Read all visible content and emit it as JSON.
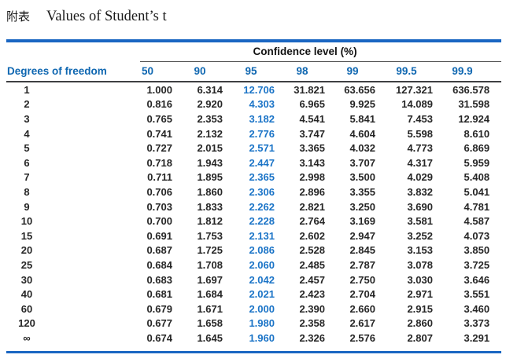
{
  "page": {
    "title_prefix": "附表",
    "title": "Values of Student’s t"
  },
  "colors": {
    "rule_blue": "#1a66c2",
    "header_text_blue": "#0f67b1",
    "highlight_column_blue": "#1b74c7",
    "body_text": "#262626",
    "thin_rule_gray": "#4d4d4d"
  },
  "table": {
    "spanner": "Confidence level (%)",
    "row_header": "Degrees of freedom",
    "columns": [
      "50",
      "90",
      "95",
      "98",
      "99",
      "99.5",
      "99.9"
    ],
    "highlight_column": "95",
    "rows": [
      {
        "df": "1",
        "values": [
          "1.000",
          "6.314",
          "12.706",
          "31.821",
          "63.656",
          "127.321",
          "636.578"
        ]
      },
      {
        "df": "2",
        "values": [
          "0.816",
          "2.920",
          "4.303",
          "6.965",
          "9.925",
          "14.089",
          "31.598"
        ]
      },
      {
        "df": "3",
        "values": [
          "0.765",
          "2.353",
          "3.182",
          "4.541",
          "5.841",
          "7.453",
          "12.924"
        ]
      },
      {
        "df": "4",
        "values": [
          "0.741",
          "2.132",
          "2.776",
          "3.747",
          "4.604",
          "5.598",
          "8.610"
        ]
      },
      {
        "df": "5",
        "values": [
          "0.727",
          "2.015",
          "2.571",
          "3.365",
          "4.032",
          "4.773",
          "6.869"
        ]
      },
      {
        "df": "6",
        "values": [
          "0.718",
          "1.943",
          "2.447",
          "3.143",
          "3.707",
          "4.317",
          "5.959"
        ]
      },
      {
        "df": "7",
        "values": [
          "0.711",
          "1.895",
          "2.365",
          "2.998",
          "3.500",
          "4.029",
          "5.408"
        ]
      },
      {
        "df": "8",
        "values": [
          "0.706",
          "1.860",
          "2.306",
          "2.896",
          "3.355",
          "3.832",
          "5.041"
        ]
      },
      {
        "df": "9",
        "values": [
          "0.703",
          "1.833",
          "2.262",
          "2.821",
          "3.250",
          "3.690",
          "4.781"
        ]
      },
      {
        "df": "10",
        "values": [
          "0.700",
          "1.812",
          "2.228",
          "2.764",
          "3.169",
          "3.581",
          "4.587"
        ]
      },
      {
        "df": "15",
        "values": [
          "0.691",
          "1.753",
          "2.131",
          "2.602",
          "2.947",
          "3.252",
          "4.073"
        ]
      },
      {
        "df": "20",
        "values": [
          "0.687",
          "1.725",
          "2.086",
          "2.528",
          "2.845",
          "3.153",
          "3.850"
        ]
      },
      {
        "df": "25",
        "values": [
          "0.684",
          "1.708",
          "2.060",
          "2.485",
          "2.787",
          "3.078",
          "3.725"
        ]
      },
      {
        "df": "30",
        "values": [
          "0.683",
          "1.697",
          "2.042",
          "2.457",
          "2.750",
          "3.030",
          "3.646"
        ]
      },
      {
        "df": "40",
        "values": [
          "0.681",
          "1.684",
          "2.021",
          "2.423",
          "2.704",
          "2.971",
          "3.551"
        ]
      },
      {
        "df": "60",
        "values": [
          "0.679",
          "1.671",
          "2.000",
          "2.390",
          "2.660",
          "2.915",
          "3.460"
        ]
      },
      {
        "df": "120",
        "values": [
          "0.677",
          "1.658",
          "1.980",
          "2.358",
          "2.617",
          "2.860",
          "3.373"
        ]
      },
      {
        "df": "∞",
        "values": [
          "0.674",
          "1.645",
          "1.960",
          "2.326",
          "2.576",
          "2.807",
          "3.291"
        ]
      }
    ]
  },
  "chart_data": {
    "type": "table",
    "title": "Values of Student’s t",
    "column_group_label": "Confidence level (%)",
    "row_label": "Degrees of freedom",
    "columns": [
      "50",
      "90",
      "95",
      "98",
      "99",
      "99.5",
      "99.9"
    ],
    "rows": [
      "1",
      "2",
      "3",
      "4",
      "5",
      "6",
      "7",
      "8",
      "9",
      "10",
      "15",
      "20",
      "25",
      "30",
      "40",
      "60",
      "120",
      "∞"
    ]
  }
}
